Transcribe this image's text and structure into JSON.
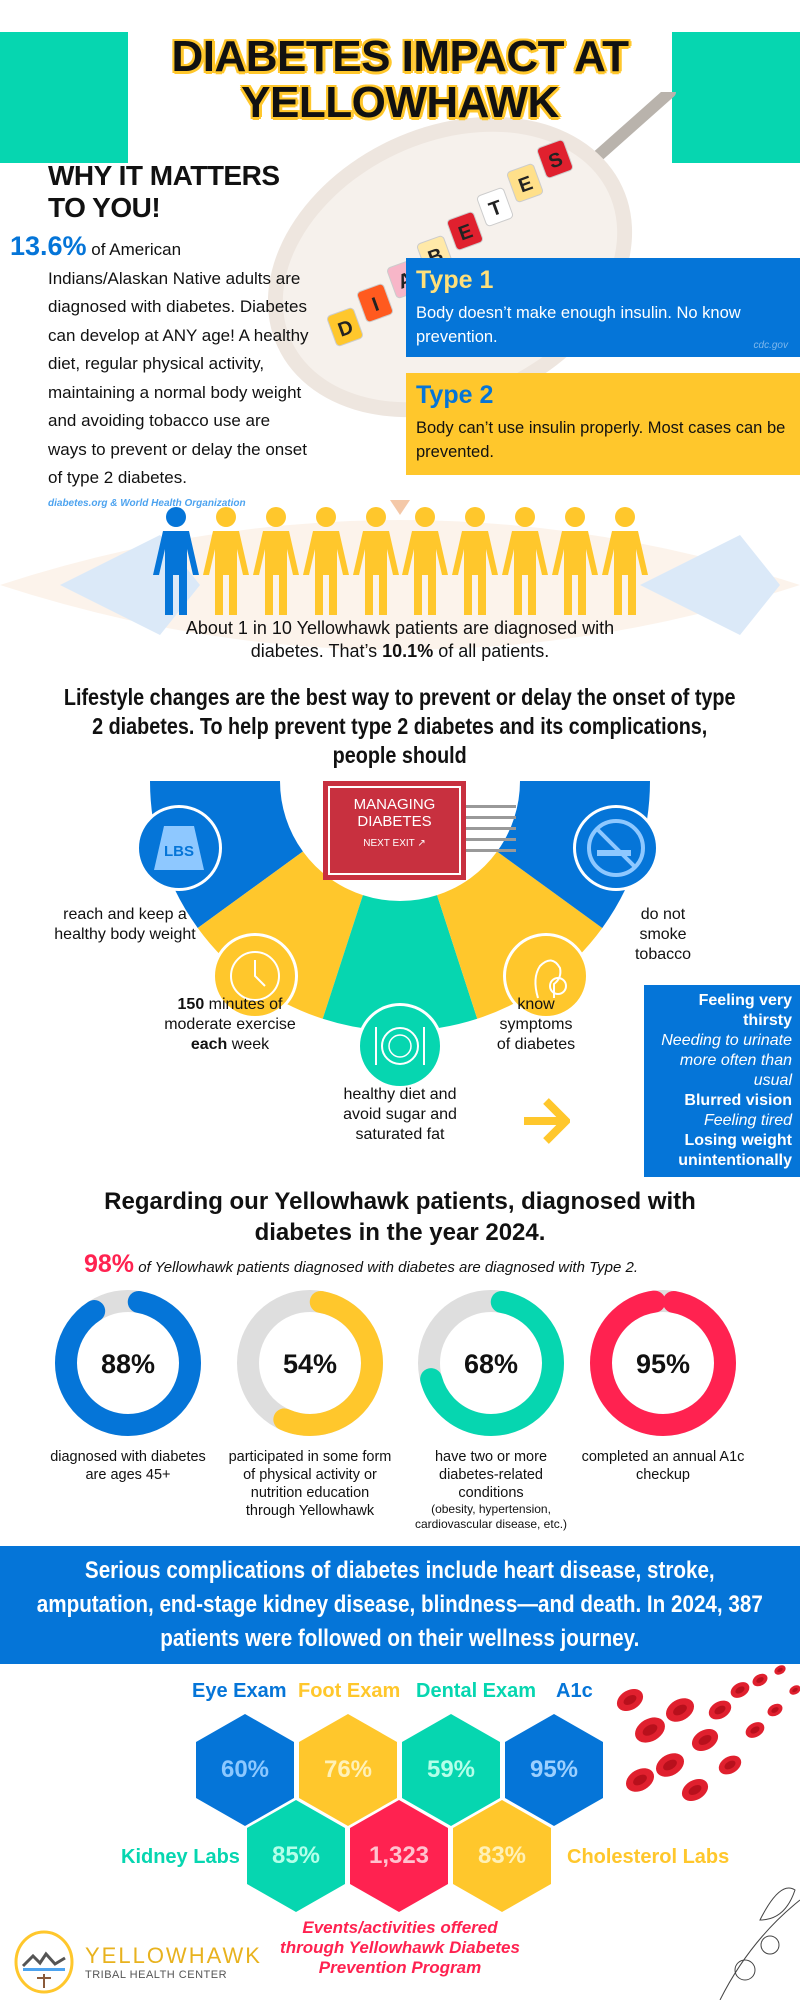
{
  "colors": {
    "blue": "#0575d8",
    "yellow": "#ffc72c",
    "teal": "#06d6b0",
    "red": "#ff2250",
    "grey": "#dedede"
  },
  "header": {
    "title_line1": "DIABETES IMPACT AT",
    "title_line2": "YELLOWHAWK",
    "cube_letters": [
      "D",
      "I",
      "A",
      "B",
      "E",
      "T",
      "E",
      "S"
    ]
  },
  "why": {
    "heading_line1": "WHY IT MATTERS",
    "heading_line2": "TO YOU!",
    "stat": "13.6%",
    "text_first": "of American",
    "text_rest": "Indians/Alaskan Native adults are diagnosed with diabetes. Diabetes can develop at ANY age! A healthy diet, regular physical activity, maintaining a normal body weight and avoiding tobacco use are ways to prevent or delay the onset of type 2 diabetes.",
    "source": "diabetes.org & World Health Organization"
  },
  "types": [
    {
      "title": "Type 1",
      "text": "Body doesn’t make enough insulin. No know prevention.",
      "source": "cdc.gov"
    },
    {
      "title": "Type 2",
      "text": "Body can’t use insulin properly. Most cases can be prevented."
    }
  ],
  "prevalence": {
    "people_total": 10,
    "people_highlighted": 1,
    "line1": "About 1 in 10 Yellowhawk patients are diagnosed with",
    "line2_pre": "diabetes. That’s ",
    "line2_bold": "10.1%",
    "line2_post": " of all patients."
  },
  "lifestyle": {
    "heading": "Lifestyle changes are the best way to prevent or delay the onset of type 2 diabetes. To help prevent type 2 diabetes and its complications, people should",
    "sign": {
      "line1": "MANAGING",
      "line2": "DIABETES",
      "line3": "NEXT EXIT"
    },
    "weight_icon_text": "LBS",
    "items": {
      "weight": "reach and keep a healthy body weight",
      "exercise_bold1": "150",
      "exercise_mid": " minutes of moderate exercise ",
      "exercise_bold2": "each",
      "exercise_end": " week",
      "diet": "healthy diet and avoid sugar and saturated fat",
      "symptoms": "know symptoms of diabetes",
      "smoke": "do not smoke tobacco"
    },
    "symptoms": [
      {
        "text": "Feeling very thirsty",
        "style": "bold"
      },
      {
        "text": "Needing to urinate more often than usual",
        "style": "italic"
      },
      {
        "text": "Blurred vision",
        "style": "bold"
      },
      {
        "text": "Feeling tired",
        "style": "italic"
      },
      {
        "text": "Losing weight unintentionally",
        "style": "bold"
      }
    ]
  },
  "patients2024": {
    "heading": "Regarding our Yellowhawk patients, diagnosed with diabetes in the year 2024.",
    "type2_stat": "98%",
    "type2_text": "of Yellowhawk patients diagnosed with diabetes are diagnosed with Type 2.",
    "donuts": [
      {
        "value": 88,
        "label": "88%",
        "color": "#0575d8",
        "desc": "diagnosed with diabetes are ages 45+"
      },
      {
        "value": 54,
        "label": "54%",
        "color": "#ffc72c",
        "desc": "participated in some form of physical activity or nutrition education through Yellowhawk"
      },
      {
        "value": 68,
        "label": "68%",
        "color": "#06d6b0",
        "desc": "have two or more diabetes-related conditions",
        "subdesc": "(obesity, hypertension, cardiovascular disease, etc.)"
      },
      {
        "value": 95,
        "label": "95%",
        "color": "#ff2250",
        "desc": "completed an annual A1c checkup"
      }
    ]
  },
  "banner": {
    "text": "Serious complications of diabetes include heart disease, stroke, amputation, end-stage kidney disease, blindness—and death. In 2024, 387 patients were followed on their wellness journey."
  },
  "wellness": {
    "labels": {
      "eye": "Eye Exam",
      "foot": "Foot Exam",
      "dental": "Dental Exam",
      "a1c": "A1c",
      "kidney": "Kidney Labs",
      "cholesterol": "Cholesterol Labs"
    },
    "values": {
      "eye": "60%",
      "foot": "76%",
      "dental": "59%",
      "a1c": "95%",
      "kidney": "85%",
      "events": "1,323",
      "cholesterol": "83%"
    },
    "events_caption": "Events/activities offered through Yellowhawk Diabetes Prevention Program"
  },
  "footer": {
    "logo_name": "YELLOWHAWK",
    "logo_sub": "TRIBAL HEALTH CENTER"
  }
}
